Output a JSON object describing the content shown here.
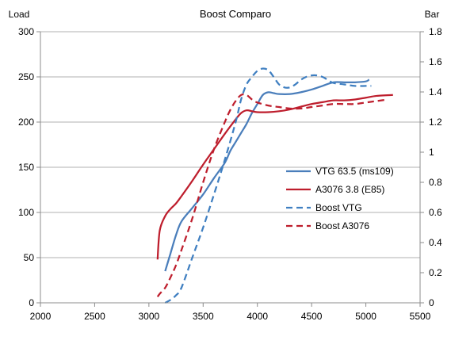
{
  "chart_data": {
    "type": "line",
    "title": "Boost Comparo",
    "ylabel": "Load",
    "y2label": "Bar",
    "xlim": [
      2000,
      5500
    ],
    "ylim": [
      0,
      300
    ],
    "y2lim": [
      0,
      1.8
    ],
    "x_ticks": [
      "2000",
      "2500",
      "3000",
      "3500",
      "4000",
      "4500",
      "5000",
      "5500"
    ],
    "x_tick_values": [
      2000,
      2500,
      3000,
      3500,
      4000,
      4500,
      5000,
      5500
    ],
    "y_ticks": [
      "0",
      "50",
      "100",
      "150",
      "200",
      "250",
      "300"
    ],
    "y_tick_values": [
      0,
      50,
      100,
      150,
      200,
      250,
      300
    ],
    "y2_ticks": [
      "0",
      "0.2",
      "0.4",
      "0.6",
      "0.8",
      "1",
      "1.2",
      "1.4",
      "1.6",
      "1.8"
    ],
    "y2_tick_values": [
      0,
      0.2,
      0.4,
      0.6,
      0.8,
      1,
      1.2,
      1.4,
      1.6,
      1.8
    ],
    "grid": "horizontal",
    "legend_position": "right",
    "series": [
      {
        "name": "VTG 63.5 (ms109)",
        "axis": "left",
        "color": "#4a7ebb",
        "dash": "solid",
        "x": [
          3150,
          3200,
          3250,
          3300,
          3400,
          3500,
          3600,
          3700,
          3750,
          3800,
          3850,
          3900,
          3950,
          4000,
          4050,
          4100,
          4150,
          4200,
          4300,
          4400,
          4500,
          4600,
          4700,
          4800,
          4900,
          5000,
          5030
        ],
        "y": [
          35,
          55,
          75,
          90,
          105,
          120,
          138,
          155,
          168,
          178,
          188,
          198,
          210,
          220,
          230,
          233,
          232,
          231,
          231,
          233,
          236,
          240,
          244,
          244,
          244,
          245,
          247
        ]
      },
      {
        "name": "A3076 3.8 (E85)",
        "axis": "left",
        "color": "#be1e2d",
        "dash": "solid",
        "x": [
          3080,
          3100,
          3150,
          3200,
          3250,
          3300,
          3400,
          3500,
          3600,
          3700,
          3800,
          3850,
          3900,
          3950,
          4000,
          4100,
          4200,
          4300,
          4400,
          4500,
          4600,
          4700,
          4800,
          4900,
          5000,
          5100,
          5250
        ],
        "y": [
          48,
          80,
          96,
          104,
          110,
          118,
          135,
          153,
          170,
          187,
          203,
          210,
          213,
          212,
          211,
          211,
          212,
          214,
          217,
          220,
          222,
          224,
          224,
          225,
          227,
          229,
          230
        ]
      },
      {
        "name": "Boost VTG",
        "axis": "right",
        "color": "#3f7fc1",
        "dash": "dashed",
        "x": [
          3150,
          3200,
          3250,
          3300,
          3400,
          3500,
          3600,
          3700,
          3800,
          3850,
          3900,
          3950,
          4000,
          4050,
          4100,
          4150,
          4200,
          4250,
          4300,
          4350,
          4400,
          4450,
          4500,
          4550,
          4600,
          4650,
          4700,
          4800,
          4900,
          5000,
          5050
        ],
        "y": [
          0,
          0.02,
          0.05,
          0.1,
          0.3,
          0.5,
          0.72,
          0.95,
          1.2,
          1.35,
          1.45,
          1.5,
          1.54,
          1.555,
          1.545,
          1.5,
          1.45,
          1.43,
          1.43,
          1.45,
          1.48,
          1.5,
          1.51,
          1.51,
          1.5,
          1.48,
          1.46,
          1.45,
          1.44,
          1.44,
          1.44
        ]
      },
      {
        "name": "Boost A3076",
        "axis": "right",
        "color": "#be1e2d",
        "dash": "dashed",
        "x": [
          3080,
          3100,
          3150,
          3200,
          3250,
          3300,
          3400,
          3500,
          3600,
          3700,
          3750,
          3800,
          3850,
          3900,
          3950,
          4000,
          4100,
          4200,
          4300,
          4400,
          4500,
          4600,
          4700,
          4800,
          4900,
          5000,
          5100,
          5200
        ],
        "y": [
          0.04,
          0.06,
          0.1,
          0.17,
          0.25,
          0.35,
          0.56,
          0.8,
          1.02,
          1.2,
          1.28,
          1.34,
          1.38,
          1.38,
          1.35,
          1.33,
          1.31,
          1.3,
          1.29,
          1.29,
          1.3,
          1.31,
          1.32,
          1.32,
          1.32,
          1.33,
          1.34,
          1.35
        ]
      }
    ]
  }
}
